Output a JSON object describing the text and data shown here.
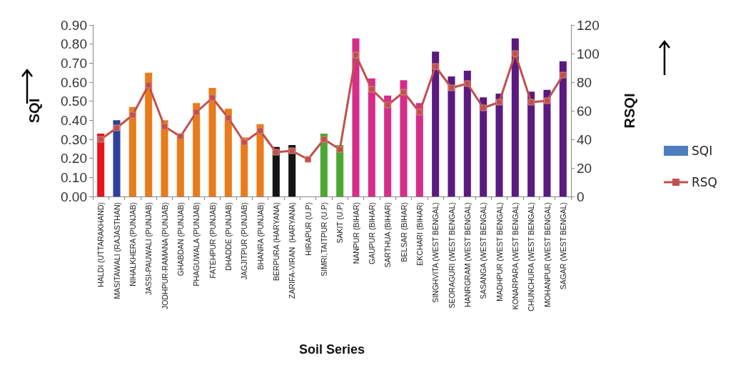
{
  "chart_data": {
    "type": "bar",
    "xlabel": "Soil Series",
    "ylabel": "SQI",
    "y2label": "RSQI",
    "categories": [
      "HALDI (UTTARAKHAND)",
      "MASITAWALI (RAJASTHAN)",
      "NIHALKHERA (PUNJAB)",
      "JASSI-PAUWALI (PUNJAB)",
      "JODHPUR-RAMANA (PUNJAB)",
      "GHABDAN (PUNJAB)",
      "PHAGUWALA (PUNJAB)",
      "FATEHPUR (PUNJAB)",
      "DHADDE (PUNJAB)",
      "JAGJITPUR (PUNJAB)",
      "BHANRA (PUNJAB)",
      "BERPURA (HARYANA)",
      "ZARIFA-VIRAN  (HARYANA)",
      "HIRAPUR (U.P)",
      "SIMRI,TAITPUR (U.P)",
      "SAKIT (U.P)",
      "NANPUR (BIHAR)",
      "GAUPUR (BIHAR)",
      "SARTHUA (BIHAR)",
      "BELSAR (BIHAR)",
      "EKCHARI (BIHAR)",
      "SINGHVITA (WEST BENGAL)",
      "SEORAGURI (WEST BENGAL)",
      "HANRGRAM (WEST BENGAL)",
      "SASANGA (WEST BENGAL)",
      "MADHPUR (WEST BENGAL)",
      "KONARPARA (WEST BENGAL)",
      "CHUNCHURA (WEST BENGAL)",
      "MOHANPUR (WEST BENGAL)",
      "SAGAR (WEST BENGAL)"
    ],
    "series": [
      {
        "name": "SQI",
        "color": "#4f7ec0",
        "values": [
          0.33,
          0.4,
          0.47,
          0.65,
          0.4,
          0.33,
          0.49,
          0.57,
          0.46,
          0.31,
          0.38,
          0.26,
          0.27,
          null,
          0.33,
          0.27,
          0.83,
          0.62,
          0.53,
          0.61,
          0.49,
          0.76,
          0.63,
          0.66,
          0.52,
          0.54,
          0.83,
          0.55,
          0.56,
          0.71
        ],
        "colors": [
          "#e8141c",
          "#2e3f9e",
          "#e87c1a",
          "#e87c1a",
          "#e87c1a",
          "#e87c1a",
          "#e87c1a",
          "#e87c1a",
          "#e87c1a",
          "#e87c1a",
          "#e87c1a",
          "#141414",
          "#141414",
          "#4aa832",
          "#4aa832",
          "#4aa832",
          "#d42e8a",
          "#d42e8a",
          "#d42e8a",
          "#d42e8a",
          "#d42e8a",
          "#5a1a80",
          "#5a1a80",
          "#5a1a80",
          "#5a1a80",
          "#5a1a80",
          "#5a1a80",
          "#5a1a80",
          "#5a1a80",
          "#5a1a80"
        ]
      },
      {
        "name": "RSQ",
        "type": "line",
        "axis": "y2",
        "color": "#c0504d",
        "values": [
          40,
          48,
          57,
          78,
          49,
          42,
          59,
          69,
          55,
          38,
          46,
          31,
          32,
          26,
          40,
          33,
          99,
          75,
          64,
          73,
          59,
          91,
          76,
          79,
          62,
          66,
          100,
          66,
          67,
          85
        ]
      }
    ],
    "ylim": [
      0,
      0.9
    ],
    "yticks": [
      {
        "value": 0,
        "label": "0.00"
      },
      {
        "value": 0.1,
        "label": "0.10"
      },
      {
        "value": 0.2,
        "label": "0.20"
      },
      {
        "value": 0.3,
        "label": "0.30"
      },
      {
        "value": 0.4,
        "label": "0.40"
      },
      {
        "value": 0.5,
        "label": "0.50"
      },
      {
        "value": 0.6,
        "label": "0.60"
      },
      {
        "value": 0.7,
        "label": "0.70"
      },
      {
        "value": 0.8,
        "label": "0.80"
      },
      {
        "value": 0.9,
        "label": "0.90"
      }
    ],
    "y2lim": [
      0,
      120
    ],
    "y2ticks": [
      0,
      20,
      40,
      60,
      80,
      100,
      120
    ],
    "marker": "square",
    "line_style": "solid",
    "grid": false,
    "legend": "right"
  }
}
